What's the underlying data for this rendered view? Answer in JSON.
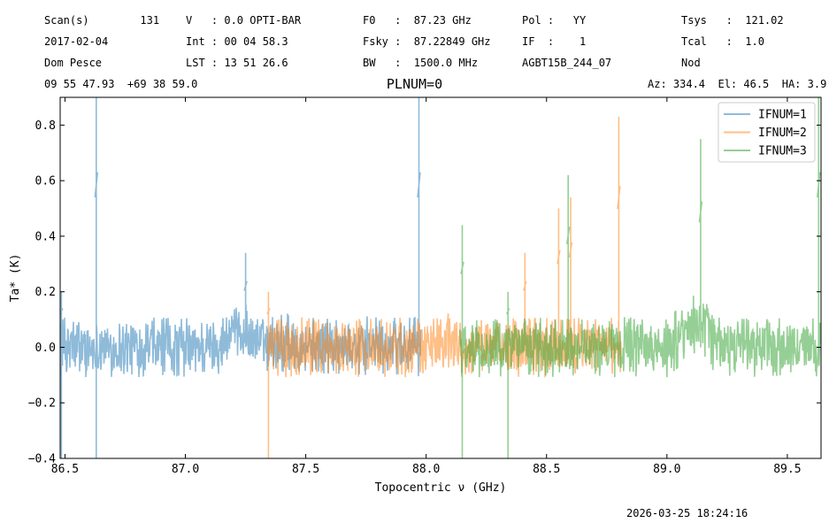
{
  "header": {
    "col1": [
      "Scan(s)        131",
      "2017-02-04",
      "Dom Pesce",
      "09 55 47.93  +69 38 59.0"
    ],
    "col2": [
      "V   : 0.0 OPTI-BAR",
      "Int : 00 04 58.3",
      "LST : 13 51 26.6"
    ],
    "col3": [
      "F0   :  87.23 GHz",
      "Fsky :  87.22849 GHz",
      "BW   :  1500.0 MHz"
    ],
    "col4": [
      "Pol :   YY",
      "IF  :    1",
      "AGBT15B_244_07"
    ],
    "col5": [
      "Tsys   :  121.02",
      "Tcal   :  1.0",
      "Nod"
    ],
    "azel": "Az: 334.4  El: 46.5  HA: 3.9"
  },
  "footer": {
    "timestamp": "2026-03-25 18:24:16"
  },
  "chart_data": {
    "type": "line",
    "title": "PLNUM=0",
    "xlabel": "Topocentric ν (GHz)",
    "ylabel": "Ta* (K)",
    "xlim": [
      86.48,
      89.64
    ],
    "ylim": [
      -0.4,
      0.9
    ],
    "xticks": [
      86.5,
      87.0,
      87.5,
      88.0,
      88.5,
      89.0,
      89.5
    ],
    "xtick_labels": [
      "86.5",
      "87.0",
      "87.5",
      "88.0",
      "88.5",
      "89.0",
      "89.5"
    ],
    "yticks": [
      -0.4,
      -0.2,
      0.0,
      0.2,
      0.4,
      0.6,
      0.8
    ],
    "ytick_labels": [
      "−0.4",
      "−0.2",
      "0.0",
      "0.2",
      "0.4",
      "0.6",
      "0.8"
    ],
    "legend_position": "top-right",
    "series": [
      {
        "name": "IFNUM=1",
        "color": "#1f77b4",
        "x_range": [
          86.48,
          87.98
        ],
        "noise": 0.09,
        "baseline": [
          [
            86.48,
            0.0
          ],
          [
            87.1,
            0.0
          ],
          [
            87.25,
            0.05
          ],
          [
            87.3,
            0.02
          ],
          [
            87.98,
            0.0
          ]
        ],
        "features": [
          {
            "x": 86.63,
            "peak": 0.9,
            "low": -0.4
          },
          {
            "x": 87.25,
            "peak": 0.34
          },
          {
            "x": 87.97,
            "peak": 0.9
          },
          {
            "x": 86.485,
            "peak": 0.2,
            "low": -0.4
          }
        ]
      },
      {
        "name": "IFNUM=2",
        "color": "#ff7f0e",
        "x_range": [
          87.34,
          88.81
        ],
        "noise": 0.09,
        "baseline": [
          [
            87.34,
            0.0
          ],
          [
            88.81,
            0.0
          ]
        ],
        "features": [
          {
            "x": 87.345,
            "peak": 0.2,
            "low": -0.4
          },
          {
            "x": 88.41,
            "peak": 0.34
          },
          {
            "x": 88.55,
            "peak": 0.5
          },
          {
            "x": 88.6,
            "peak": 0.54
          },
          {
            "x": 88.8,
            "peak": 0.83
          }
        ]
      },
      {
        "name": "IFNUM=3",
        "color": "#2ca02c",
        "x_range": [
          88.14,
          89.64
        ],
        "noise": 0.09,
        "baseline": [
          [
            88.14,
            0.0
          ],
          [
            89.0,
            0.0
          ],
          [
            89.14,
            0.1
          ],
          [
            89.2,
            0.0
          ],
          [
            89.64,
            0.0
          ]
        ],
        "features": [
          {
            "x": 88.15,
            "peak": 0.44,
            "low": -0.4
          },
          {
            "x": 88.34,
            "peak": 0.2,
            "low": -0.4
          },
          {
            "x": 88.59,
            "peak": 0.62
          },
          {
            "x": 89.14,
            "peak": 0.75
          },
          {
            "x": 89.63,
            "peak": 0.9
          }
        ]
      }
    ]
  }
}
